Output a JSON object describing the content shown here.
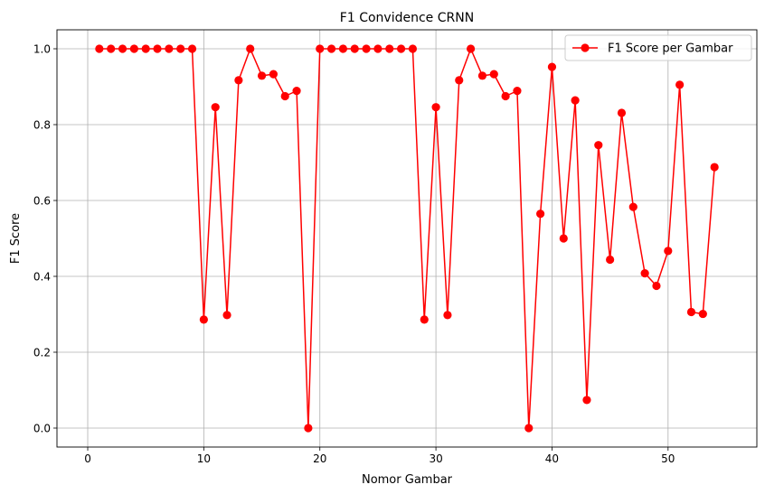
{
  "colors": {
    "series": "#ff0000",
    "grid": "#b0b0b0",
    "axis": "#000000",
    "legend_border": "#cccccc"
  },
  "chart_data": {
    "type": "line",
    "title": "F1 Convidence CRNN",
    "xlabel": "Nomor Gambar",
    "ylabel": "F1 Score",
    "xlim": [
      -2.65,
      57.65
    ],
    "ylim": [
      -0.05,
      1.05
    ],
    "xticks": [
      0,
      10,
      20,
      30,
      40,
      50
    ],
    "yticks": [
      0.0,
      0.2,
      0.4,
      0.6,
      0.8,
      1.0
    ],
    "xtick_labels": [
      "0",
      "10",
      "20",
      "30",
      "40",
      "50"
    ],
    "ytick_labels": [
      "0.0",
      "0.2",
      "0.4",
      "0.6",
      "0.8",
      "1.0"
    ],
    "grid": true,
    "legend_position": "top-right",
    "series": [
      {
        "name": "F1 Score per Gambar",
        "marker": "circle",
        "color": "#ff0000",
        "x": [
          1,
          2,
          3,
          4,
          5,
          6,
          7,
          8,
          9,
          10,
          11,
          12,
          13,
          14,
          15,
          16,
          17,
          18,
          19,
          20,
          21,
          22,
          23,
          24,
          25,
          26,
          27,
          28,
          29,
          30,
          31,
          32,
          33,
          34,
          35,
          36,
          37,
          38,
          39,
          40,
          41,
          42,
          43,
          44,
          45,
          46,
          47,
          48,
          49,
          50,
          51,
          52,
          53,
          54
        ],
        "values": [
          1.0,
          1.0,
          1.0,
          1.0,
          1.0,
          1.0,
          1.0,
          1.0,
          1.0,
          0.286,
          0.846,
          0.298,
          0.917,
          1.0,
          0.929,
          0.933,
          0.875,
          0.889,
          0.0,
          1.0,
          1.0,
          1.0,
          1.0,
          1.0,
          1.0,
          1.0,
          1.0,
          1.0,
          0.286,
          0.846,
          0.298,
          0.917,
          1.0,
          0.929,
          0.933,
          0.875,
          0.889,
          0.0,
          0.565,
          0.952,
          0.5,
          0.864,
          0.074,
          0.746,
          0.444,
          0.831,
          0.583,
          0.408,
          0.375,
          0.467,
          0.905,
          0.306,
          0.301,
          0.688
        ]
      }
    ]
  }
}
